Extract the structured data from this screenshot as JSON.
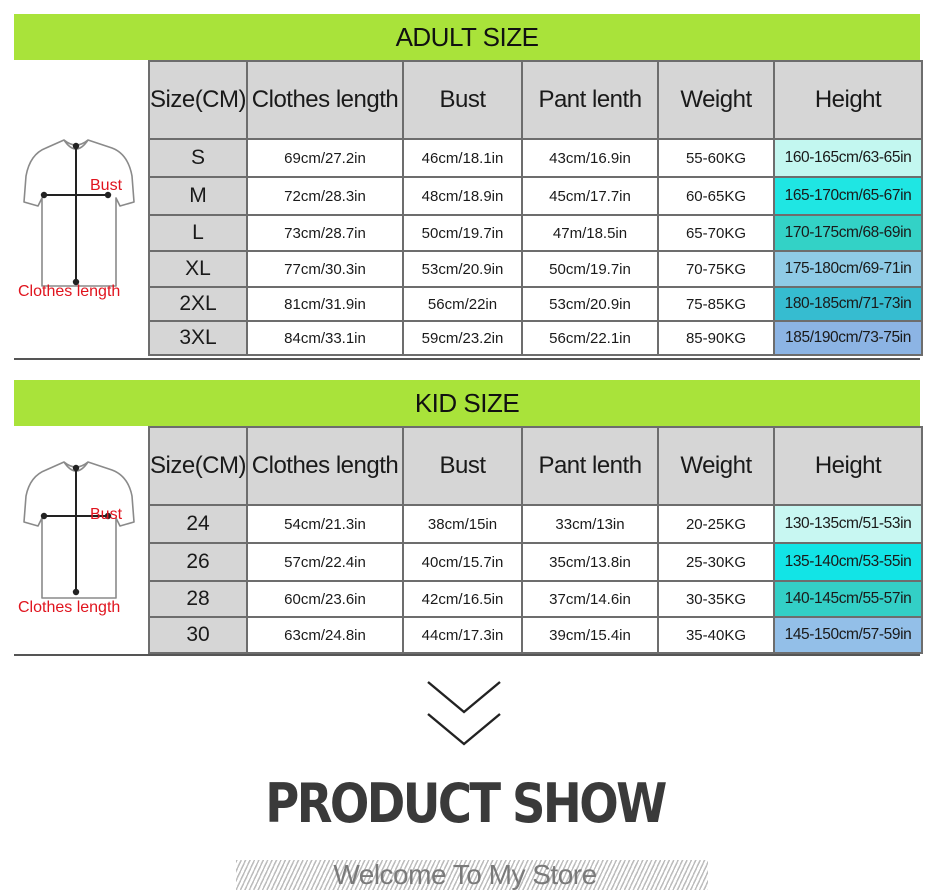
{
  "adult": {
    "title": "ADULT SIZE",
    "bust_label": "Bust",
    "length_label": "Clothes length",
    "headers": [
      "Size(CM)",
      "Clothes length",
      "Bust",
      "Pant lenth",
      "Weight",
      "Height"
    ],
    "rows": [
      {
        "size": "S",
        "length": "69cm/27.2in",
        "bust": "46cm/18.1in",
        "pant": "43cm/16.9in",
        "weight": "55-60KG",
        "height": "160-165cm/63-65in",
        "height_color": "#c3f7f0"
      },
      {
        "size": "M",
        "length": "72cm/28.3in",
        "bust": "48cm/18.9in",
        "pant": "45cm/17.7in",
        "weight": "60-65KG",
        "height": "165-170cm/65-67in",
        "height_color": "#1fe6e3"
      },
      {
        "size": "L",
        "length": "73cm/28.7in",
        "bust": "50cm/19.7in",
        "pant": "47m/18.5in",
        "weight": "65-70KG",
        "height": "170-175cm/68-69in",
        "height_color": "#33d2c6"
      },
      {
        "size": "XL",
        "length": "77cm/30.3in",
        "bust": "53cm/20.9in",
        "pant": "50cm/19.7in",
        "weight": "70-75KG",
        "height": "175-180cm/69-71in",
        "height_color": "#8fcbe6"
      },
      {
        "size": "2XL",
        "length": "81cm/31.9in",
        "bust": "56cm/22in",
        "pant": "53cm/20.9in",
        "weight": "75-85KG",
        "height": "180-185cm/71-73in",
        "height_color": "#36bcd0"
      },
      {
        "size": "3XL",
        "length": "84cm/33.1in",
        "bust": "59cm/23.2in",
        "pant": "56cm/22.1in",
        "weight": "85-90KG",
        "height": "185/190cm/73-75in",
        "height_color": "#8cb4e4"
      }
    ]
  },
  "kid": {
    "title": "KID SIZE",
    "bust_label": "Bust",
    "length_label": "Clothes length",
    "headers": [
      "Size(CM)",
      "Clothes length",
      "Bust",
      "Pant lenth",
      "Weight",
      "Height"
    ],
    "rows": [
      {
        "size": "24",
        "length": "54cm/21.3in",
        "bust": "38cm/15in",
        "pant": "33cm/13in",
        "weight": "20-25KG",
        "height": "130-135cm/51-53in",
        "height_color": "#c8f7f2"
      },
      {
        "size": "26",
        "length": "57cm/22.4in",
        "bust": "40cm/15.7in",
        "pant": "35cm/13.8in",
        "weight": "25-30KG",
        "height": "135-140cm/53-55in",
        "height_color": "#12e4e6"
      },
      {
        "size": "28",
        "length": "60cm/23.6in",
        "bust": "42cm/16.5in",
        "pant": "37cm/14.6in",
        "weight": "30-35KG",
        "height": "140-145cm/55-57in",
        "height_color": "#33cfc6"
      },
      {
        "size": "30",
        "length": "63cm/24.8in",
        "bust": "44cm/17.3in",
        "pant": "39cm/15.4in",
        "weight": "35-40KG",
        "height": "145-150cm/57-59in",
        "height_color": "#93bfe8"
      }
    ]
  },
  "footer": {
    "title": "PRODUCT SHOW",
    "subtitle": "Welcome To My Store"
  },
  "icons": {
    "shirt": "tshirt-outline-icon",
    "chevron": "double-chevron-down-icon"
  },
  "colors": {
    "band": "#a9e33a",
    "header_cell": "#d6d6d6",
    "measure_label": "#e0141e"
  }
}
